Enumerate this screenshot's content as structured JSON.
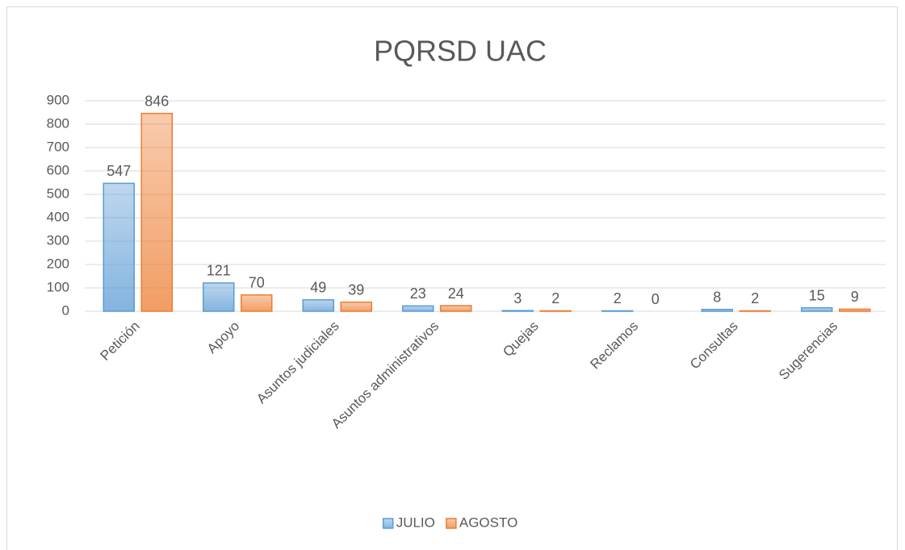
{
  "chart_data": {
    "type": "bar",
    "title": "PQRSD UAC",
    "categories": [
      "Petición",
      "Apoyo",
      "Asuntos judiciales",
      "Asuntos administrativos",
      "Quejas",
      "Reclamos",
      "Consultas",
      "Sugerencias"
    ],
    "series": [
      {
        "name": "JULIO",
        "color": "#5b9bd5",
        "values": [
          547,
          121,
          49,
          23,
          3,
          2,
          8,
          15
        ]
      },
      {
        "name": "AGOSTO",
        "color": "#ed7d31",
        "values": [
          846,
          70,
          39,
          24,
          2,
          0,
          2,
          9
        ]
      }
    ],
    "ylim": [
      0,
      900
    ],
    "yticks": [
      0,
      100,
      200,
      300,
      400,
      500,
      600,
      700,
      800,
      900
    ],
    "grid": true,
    "legend": "bottom"
  }
}
